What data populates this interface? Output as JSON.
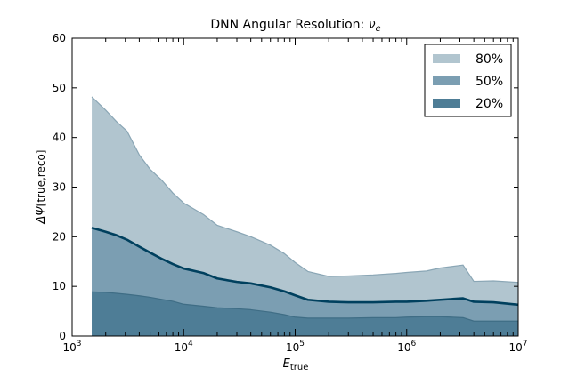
{
  "chart_data": {
    "type": "area",
    "title": "DNN Angular Resolution:",
    "title_symbol": "ν",
    "title_subscript": "e",
    "xlabel": "E",
    "xlabel_subscript": "true",
    "ylabel": "ΔΨ",
    "ylabel_subscript": "[true,reco]",
    "xscale": "log",
    "xlim": [
      1000,
      10000000
    ],
    "ylim": [
      0,
      60
    ],
    "x_ticks": [
      {
        "value": 1000,
        "base": "10",
        "exp": "3"
      },
      {
        "value": 10000,
        "base": "10",
        "exp": "4"
      },
      {
        "value": 100000,
        "base": "10",
        "exp": "5"
      },
      {
        "value": 1000000,
        "base": "10",
        "exp": "6"
      },
      {
        "value": 10000000,
        "base": "10",
        "exp": "7"
      }
    ],
    "y_ticks": [
      "0",
      "10",
      "20",
      "30",
      "40",
      "50",
      "60"
    ],
    "legend_position": "top-right",
    "x": [
      1500,
      2000,
      2500,
      3100,
      4000,
      5000,
      6300,
      8000,
      10000,
      15000,
      20000,
      30000,
      40000,
      60000,
      80000,
      100000,
      130000,
      200000,
      300000,
      500000,
      800000,
      1000000,
      1500000,
      2000000,
      3200000,
      4000000,
      6000000,
      10000000
    ],
    "series": [
      {
        "name": "80%",
        "color": "#b1c5cf",
        "edge": "#8aa6b5",
        "values": [
          48.2,
          45.5,
          43.2,
          41.3,
          36.5,
          33.6,
          31.5,
          28.8,
          26.8,
          24.5,
          22.3,
          21.0,
          20.0,
          18.3,
          16.6,
          14.8,
          13.0,
          12.0,
          12.1,
          12.3,
          12.6,
          12.8,
          13.1,
          13.7,
          14.3,
          11.0,
          11.1,
          10.8
        ]
      },
      {
        "name": "50%",
        "color": "#7b9eb2",
        "edge": "#00405e",
        "values": [
          21.8,
          21.0,
          20.3,
          19.4,
          18.0,
          16.8,
          15.6,
          14.5,
          13.6,
          12.7,
          11.6,
          10.9,
          10.6,
          9.8,
          9.0,
          8.2,
          7.3,
          6.9,
          6.8,
          6.8,
          6.9,
          6.9,
          7.1,
          7.3,
          7.6,
          6.9,
          6.8,
          6.3
        ]
      },
      {
        "name": "20%",
        "color": "#4e7d96",
        "edge": "#3f6d85",
        "values": [
          8.9,
          8.8,
          8.6,
          8.4,
          8.1,
          7.8,
          7.4,
          7.0,
          6.4,
          6.0,
          5.7,
          5.5,
          5.3,
          4.8,
          4.3,
          3.8,
          3.6,
          3.6,
          3.6,
          3.7,
          3.7,
          3.8,
          3.9,
          3.9,
          3.7,
          3.0,
          3.0,
          3.0
        ]
      }
    ]
  }
}
